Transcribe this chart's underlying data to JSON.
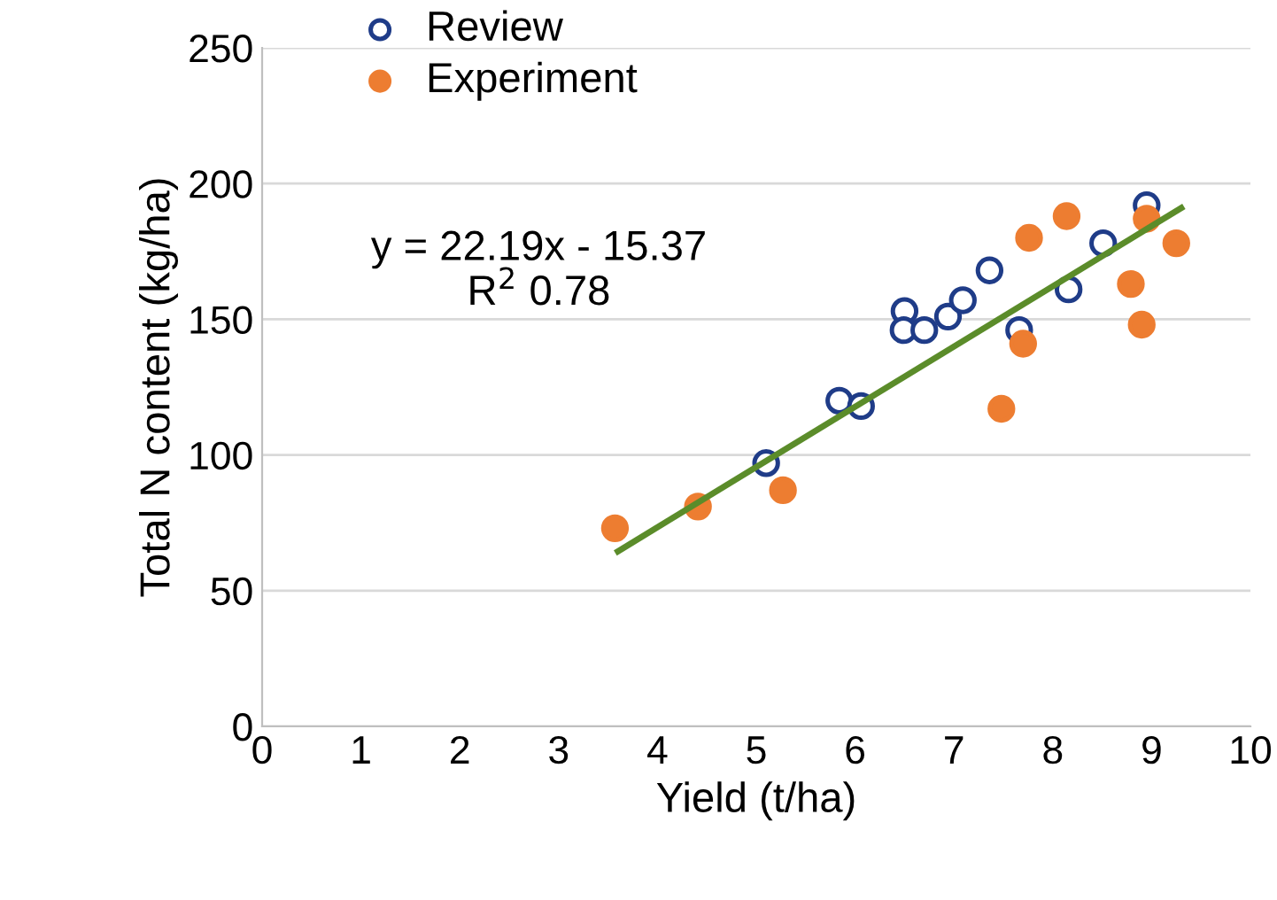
{
  "chart_data": {
    "type": "scatter",
    "xlabel": "Yield (t/ha)",
    "ylabel": "Total N content (kg/ha)",
    "xlim": [
      0,
      10
    ],
    "xticks": [
      0,
      1,
      2,
      3,
      4,
      5,
      6,
      7,
      8,
      9,
      10
    ],
    "ylim": [
      0,
      250
    ],
    "yticks": [
      0,
      50,
      100,
      150,
      200,
      250
    ],
    "grid": "y",
    "legend": "top left",
    "marker": "circle",
    "series": [
      {
        "name": "Review",
        "color": "#1f3c88",
        "x": [
          5.1,
          5.84,
          6.06,
          6.5,
          6.49,
          6.7,
          6.94,
          7.09,
          7.36,
          7.66,
          8.16,
          8.51,
          8.95
        ],
        "values": [
          97,
          120,
          118,
          153,
          146,
          146,
          151,
          157,
          168,
          146,
          161,
          178,
          192
        ]
      },
      {
        "name": "Experiment",
        "color": "#ed7d31",
        "x": [
          3.57,
          4.41,
          5.27,
          7.48,
          7.7,
          7.76,
          8.14,
          8.79,
          8.9,
          8.95,
          9.25
        ],
        "values": [
          73,
          81,
          87,
          117,
          141,
          180,
          188,
          163,
          148,
          187,
          178
        ]
      },
      {
        "type": "line",
        "marker": "none",
        "color": "#5b8c2a",
        "x": [
          3.6,
          9.3
        ],
        "values": [
          64.5,
          191.0
        ]
      }
    ],
    "annotations": [
      "y = 22.19x - 15.37\nR$^{2}$ 0.78"
    ]
  }
}
